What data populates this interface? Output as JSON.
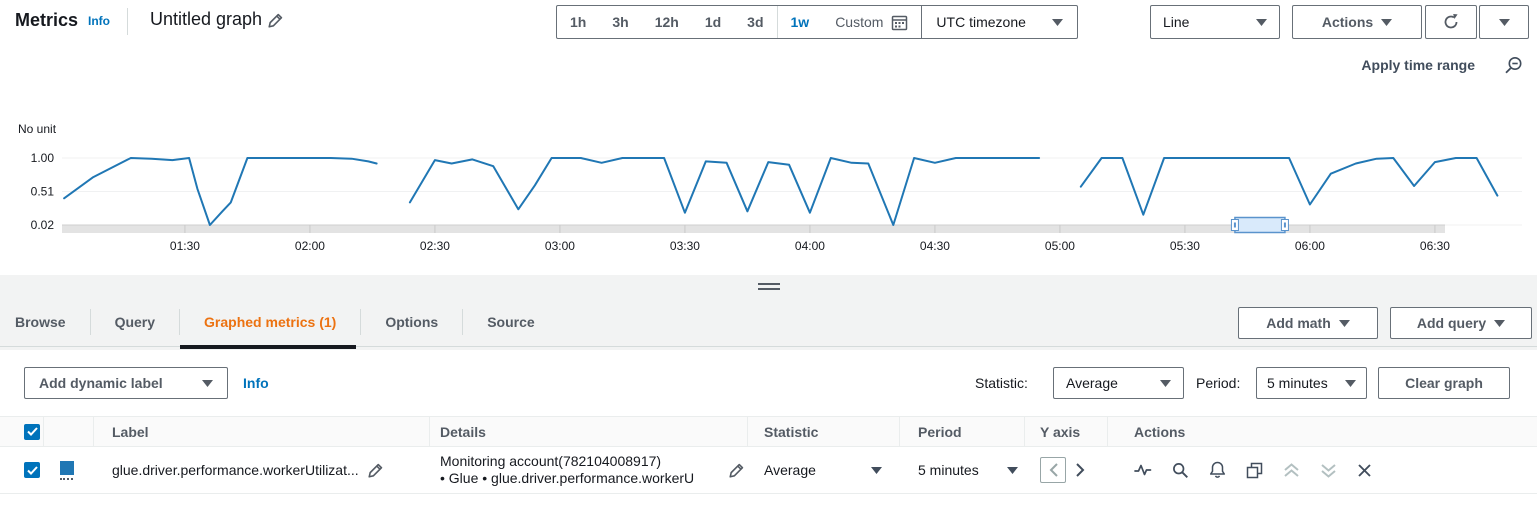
{
  "header": {
    "app_title": "Metrics",
    "info_label": "Info",
    "graph_name": "Untitled graph",
    "time_ranges": [
      {
        "label": "1h"
      },
      {
        "label": "3h"
      },
      {
        "label": "12h"
      },
      {
        "label": "1d"
      },
      {
        "label": "3d",
        "divider_after": true
      },
      {
        "label": "1w",
        "active": true
      },
      {
        "label": "Custom",
        "calendar": true
      }
    ],
    "timezone_value": "UTC timezone",
    "chart_type_value": "Line",
    "actions_label": "Actions"
  },
  "chart": {
    "apply_time_range_label": "Apply time range"
  },
  "chart_data": {
    "type": "line",
    "unit_label": "No unit",
    "y_axis": {
      "min": 0.02,
      "max": 1.0,
      "ticks": [
        {
          "label": "1.00",
          "v": 1.0
        },
        {
          "label": "0.51",
          "v": 0.51
        },
        {
          "label": "0.02",
          "v": 0.02
        }
      ]
    },
    "x_axis": {
      "ticks": [
        {
          "label": "01:30",
          "m": 30
        },
        {
          "label": "02:00",
          "m": 60
        },
        {
          "label": "02:30",
          "m": 90
        },
        {
          "label": "03:00",
          "m": 120
        },
        {
          "label": "03:30",
          "m": 150
        },
        {
          "label": "04:00",
          "m": 180
        },
        {
          "label": "04:30",
          "m": 210
        },
        {
          "label": "05:00",
          "m": 240
        },
        {
          "label": "05:30",
          "m": 270
        },
        {
          "label": "06:00",
          "m": 300
        },
        {
          "label": "06:30",
          "m": 330
        }
      ]
    },
    "series": [
      {
        "name": "glue.driver.performance.workerUtilization",
        "color": "#2077b4",
        "statistic": "Average",
        "period": "5 minutes",
        "segments": [
          [
            [
              1,
              0.41
            ],
            [
              8,
              0.72
            ],
            [
              17,
              1.0
            ],
            [
              22,
              0.99
            ],
            [
              27,
              0.97
            ],
            [
              31,
              1.0
            ],
            [
              33,
              0.55
            ],
            [
              36,
              0.02
            ],
            [
              39,
              0.22
            ],
            [
              41,
              0.35
            ],
            [
              45,
              1.0
            ],
            [
              55,
              1.0
            ],
            [
              65,
              1.0
            ],
            [
              70,
              0.99
            ],
            [
              74,
              0.95
            ],
            [
              76,
              0.92
            ]
          ],
          [
            [
              84,
              0.35
            ],
            [
              90,
              0.97
            ],
            [
              94,
              0.92
            ],
            [
              99,
              0.98
            ],
            [
              104,
              0.88
            ],
            [
              110,
              0.25
            ],
            [
              114,
              0.6
            ],
            [
              118,
              1.0
            ],
            [
              125,
              1.0
            ],
            [
              130,
              0.93
            ],
            [
              135,
              1.0
            ],
            [
              145,
              1.0
            ],
            [
              150,
              0.2
            ],
            [
              155,
              0.95
            ],
            [
              160,
              0.93
            ],
            [
              165,
              0.22
            ],
            [
              170,
              0.94
            ],
            [
              175,
              0.9
            ],
            [
              180,
              0.2
            ],
            [
              185,
              1.0
            ],
            [
              190,
              0.93
            ],
            [
              194,
              0.92
            ],
            [
              200,
              0.02
            ],
            [
              205,
              1.0
            ],
            [
              210,
              0.93
            ],
            [
              215,
              1.0
            ],
            [
              225,
              1.0
            ],
            [
              235,
              1.0
            ]
          ],
          [
            [
              245,
              0.58
            ],
            [
              250,
              1.0
            ],
            [
              255,
              1.0
            ],
            [
              260,
              0.17
            ],
            [
              265,
              1.0
            ],
            [
              275,
              1.0
            ],
            [
              285,
              1.0
            ],
            [
              295,
              1.0
            ],
            [
              300,
              0.32
            ],
            [
              305,
              0.77
            ],
            [
              311,
              0.92
            ],
            [
              316,
              0.99
            ],
            [
              320,
              1.0
            ],
            [
              325,
              0.59
            ],
            [
              330,
              0.94
            ],
            [
              335,
              1.0
            ],
            [
              340,
              1.0
            ],
            [
              345,
              0.45
            ]
          ]
        ]
      }
    ],
    "scrollbar": {
      "selection_start_m": 282,
      "selection_end_m": 294
    }
  },
  "tabs": [
    {
      "label": "Browse"
    },
    {
      "label": "Query"
    },
    {
      "label": "Graphed metrics (1)",
      "active": true
    },
    {
      "label": "Options"
    },
    {
      "label": "Source"
    }
  ],
  "tab_actions": {
    "add_math": "Add math",
    "add_query": "Add query"
  },
  "toolbar": {
    "add_dynamic_label": "Add dynamic label",
    "info_label": "Info",
    "statistic_label": "Statistic:",
    "statistic_value": "Average",
    "period_label": "Period:",
    "period_value": "5 minutes",
    "clear_graph": "Clear graph"
  },
  "table": {
    "columns": {
      "label": "Label",
      "details": "Details",
      "statistic": "Statistic",
      "period": "Period",
      "y_axis": "Y axis",
      "actions": "Actions"
    },
    "rows": [
      {
        "label": "glue.driver.performance.workerUtilizat...",
        "details_line1": "Monitoring account(782104008917)",
        "details_line2": "• Glue • glue.driver.performance.workerU",
        "statistic": "Average",
        "period": "5 minutes",
        "color": "#2077b4"
      }
    ]
  }
}
